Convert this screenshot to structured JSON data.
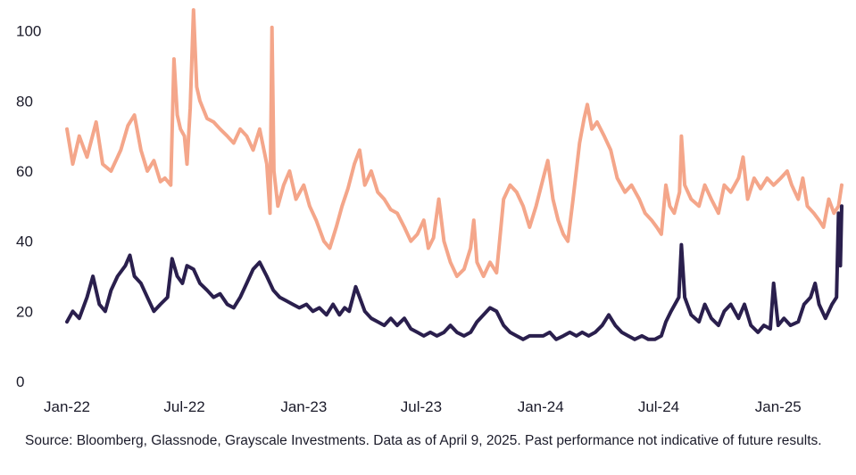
{
  "chart_data": {
    "type": "line",
    "title": "",
    "xlabel": "",
    "ylabel": "",
    "ylim": [
      0,
      105
    ],
    "yticks": [
      0,
      20,
      40,
      60,
      80,
      100
    ],
    "grid": false,
    "legend": "none",
    "xticks": [
      {
        "label": "Jan-22",
        "date": "2022-01-01"
      },
      {
        "label": "Jul-22",
        "date": "2022-07-01"
      },
      {
        "label": "Jan-23",
        "date": "2023-01-01"
      },
      {
        "label": "Jul-23",
        "date": "2023-07-01"
      },
      {
        "label": "Jan-24",
        "date": "2024-01-01"
      },
      {
        "label": "Jul-24",
        "date": "2024-07-01"
      },
      {
        "label": "Jan-25",
        "date": "2025-01-01"
      }
    ],
    "x_range": [
      "2022-01-01",
      "2025-04-09"
    ],
    "series": [
      {
        "color": "#f4a68a",
        "points": [
          [
            "2022-01-01",
            72
          ],
          [
            "2022-01-10",
            62
          ],
          [
            "2022-01-20",
            70
          ],
          [
            "2022-02-01",
            64
          ],
          [
            "2022-02-15",
            74
          ],
          [
            "2022-02-25",
            62
          ],
          [
            "2022-03-10",
            60
          ],
          [
            "2022-03-25",
            66
          ],
          [
            "2022-04-05",
            73
          ],
          [
            "2022-04-15",
            76
          ],
          [
            "2022-04-25",
            66
          ],
          [
            "2022-05-05",
            60
          ],
          [
            "2022-05-15",
            63
          ],
          [
            "2022-05-25",
            57
          ],
          [
            "2022-06-01",
            58
          ],
          [
            "2022-06-10",
            56
          ],
          [
            "2022-06-15",
            92
          ],
          [
            "2022-06-20",
            76
          ],
          [
            "2022-06-25",
            72
          ],
          [
            "2022-07-01",
            70
          ],
          [
            "2022-07-05",
            62
          ],
          [
            "2022-07-10",
            78
          ],
          [
            "2022-07-15",
            106
          ],
          [
            "2022-07-20",
            84
          ],
          [
            "2022-07-25",
            80
          ],
          [
            "2022-08-05",
            75
          ],
          [
            "2022-08-15",
            74
          ],
          [
            "2022-08-25",
            72
          ],
          [
            "2022-09-05",
            70
          ],
          [
            "2022-09-15",
            68
          ],
          [
            "2022-09-25",
            72
          ],
          [
            "2022-10-05",
            70
          ],
          [
            "2022-10-15",
            66
          ],
          [
            "2022-10-25",
            72
          ],
          [
            "2022-11-05",
            62
          ],
          [
            "2022-11-10",
            48
          ],
          [
            "2022-11-13",
            101
          ],
          [
            "2022-11-16",
            60
          ],
          [
            "2022-11-22",
            50
          ],
          [
            "2022-12-01",
            56
          ],
          [
            "2022-12-10",
            60
          ],
          [
            "2022-12-20",
            52
          ],
          [
            "2023-01-01",
            56
          ],
          [
            "2023-01-10",
            50
          ],
          [
            "2023-01-20",
            46
          ],
          [
            "2023-02-01",
            40
          ],
          [
            "2023-02-10",
            38
          ],
          [
            "2023-02-20",
            44
          ],
          [
            "2023-03-01",
            50
          ],
          [
            "2023-03-10",
            55
          ],
          [
            "2023-03-20",
            62
          ],
          [
            "2023-03-28",
            66
          ],
          [
            "2023-04-05",
            56
          ],
          [
            "2023-04-15",
            60
          ],
          [
            "2023-04-25",
            54
          ],
          [
            "2023-05-05",
            52
          ],
          [
            "2023-05-15",
            49
          ],
          [
            "2023-05-25",
            48
          ],
          [
            "2023-06-05",
            44
          ],
          [
            "2023-06-15",
            40
          ],
          [
            "2023-06-25",
            42
          ],
          [
            "2023-07-05",
            46
          ],
          [
            "2023-07-12",
            38
          ],
          [
            "2023-07-20",
            41
          ],
          [
            "2023-07-28",
            52
          ],
          [
            "2023-08-05",
            40
          ],
          [
            "2023-08-15",
            34
          ],
          [
            "2023-08-25",
            30
          ],
          [
            "2023-09-05",
            32
          ],
          [
            "2023-09-15",
            38
          ],
          [
            "2023-09-20",
            46
          ],
          [
            "2023-09-25",
            34
          ],
          [
            "2023-10-05",
            30
          ],
          [
            "2023-10-15",
            34
          ],
          [
            "2023-10-25",
            31
          ],
          [
            "2023-11-05",
            52
          ],
          [
            "2023-11-15",
            56
          ],
          [
            "2023-11-25",
            54
          ],
          [
            "2023-12-05",
            50
          ],
          [
            "2023-12-15",
            44
          ],
          [
            "2023-12-25",
            50
          ],
          [
            "2024-01-05",
            58
          ],
          [
            "2024-01-12",
            63
          ],
          [
            "2024-01-20",
            52
          ],
          [
            "2024-01-28",
            46
          ],
          [
            "2024-02-05",
            42
          ],
          [
            "2024-02-12",
            40
          ],
          [
            "2024-02-20",
            52
          ],
          [
            "2024-03-01",
            68
          ],
          [
            "2024-03-08",
            75
          ],
          [
            "2024-03-13",
            79
          ],
          [
            "2024-03-20",
            72
          ],
          [
            "2024-03-28",
            74
          ],
          [
            "2024-04-08",
            70
          ],
          [
            "2024-04-18",
            66
          ],
          [
            "2024-04-28",
            58
          ],
          [
            "2024-05-10",
            54
          ],
          [
            "2024-05-20",
            56
          ],
          [
            "2024-06-01",
            52
          ],
          [
            "2024-06-10",
            48
          ],
          [
            "2024-06-20",
            46
          ],
          [
            "2024-06-28",
            44
          ],
          [
            "2024-07-05",
            42
          ],
          [
            "2024-07-12",
            56
          ],
          [
            "2024-07-18",
            50
          ],
          [
            "2024-07-25",
            48
          ],
          [
            "2024-08-02",
            54
          ],
          [
            "2024-08-05",
            70
          ],
          [
            "2024-08-10",
            56
          ],
          [
            "2024-08-20",
            52
          ],
          [
            "2024-09-01",
            50
          ],
          [
            "2024-09-10",
            56
          ],
          [
            "2024-09-20",
            52
          ],
          [
            "2024-10-01",
            48
          ],
          [
            "2024-10-10",
            56
          ],
          [
            "2024-10-20",
            54
          ],
          [
            "2024-11-01",
            58
          ],
          [
            "2024-11-08",
            64
          ],
          [
            "2024-11-15",
            52
          ],
          [
            "2024-11-25",
            58
          ],
          [
            "2024-12-05",
            55
          ],
          [
            "2024-12-15",
            58
          ],
          [
            "2024-12-25",
            56
          ],
          [
            "2025-01-05",
            58
          ],
          [
            "2025-01-15",
            60
          ],
          [
            "2025-01-22",
            56
          ],
          [
            "2025-02-01",
            52
          ],
          [
            "2025-02-08",
            58
          ],
          [
            "2025-02-15",
            50
          ],
          [
            "2025-02-25",
            48
          ],
          [
            "2025-03-05",
            46
          ],
          [
            "2025-03-12",
            44
          ],
          [
            "2025-03-20",
            52
          ],
          [
            "2025-03-28",
            48
          ],
          [
            "2025-04-04",
            50
          ],
          [
            "2025-04-09",
            56
          ]
        ]
      },
      {
        "color": "#2a1f4d",
        "points": [
          [
            "2022-01-01",
            17
          ],
          [
            "2022-01-10",
            20
          ],
          [
            "2022-01-20",
            18
          ],
          [
            "2022-02-01",
            24
          ],
          [
            "2022-02-10",
            30
          ],
          [
            "2022-02-20",
            22
          ],
          [
            "2022-03-01",
            20
          ],
          [
            "2022-03-10",
            26
          ],
          [
            "2022-03-20",
            30
          ],
          [
            "2022-04-01",
            33
          ],
          [
            "2022-04-08",
            36
          ],
          [
            "2022-04-15",
            30
          ],
          [
            "2022-04-25",
            28
          ],
          [
            "2022-05-05",
            24
          ],
          [
            "2022-05-15",
            20
          ],
          [
            "2022-05-25",
            22
          ],
          [
            "2022-06-05",
            24
          ],
          [
            "2022-06-12",
            35
          ],
          [
            "2022-06-20",
            30
          ],
          [
            "2022-06-28",
            28
          ],
          [
            "2022-07-05",
            33
          ],
          [
            "2022-07-15",
            32
          ],
          [
            "2022-07-25",
            28
          ],
          [
            "2022-08-05",
            26
          ],
          [
            "2022-08-15",
            24
          ],
          [
            "2022-08-25",
            25
          ],
          [
            "2022-09-05",
            22
          ],
          [
            "2022-09-15",
            21
          ],
          [
            "2022-09-25",
            24
          ],
          [
            "2022-10-05",
            28
          ],
          [
            "2022-10-15",
            32
          ],
          [
            "2022-10-25",
            34
          ],
          [
            "2022-11-05",
            30
          ],
          [
            "2022-11-15",
            26
          ],
          [
            "2022-11-25",
            24
          ],
          [
            "2022-12-05",
            23
          ],
          [
            "2022-12-15",
            22
          ],
          [
            "2022-12-25",
            21
          ],
          [
            "2023-01-05",
            22
          ],
          [
            "2023-01-15",
            20
          ],
          [
            "2023-01-25",
            21
          ],
          [
            "2023-02-05",
            19
          ],
          [
            "2023-02-15",
            22
          ],
          [
            "2023-02-25",
            19
          ],
          [
            "2023-03-05",
            21
          ],
          [
            "2023-03-12",
            20
          ],
          [
            "2023-03-22",
            27
          ],
          [
            "2023-03-28",
            24
          ],
          [
            "2023-04-05",
            20
          ],
          [
            "2023-04-15",
            18
          ],
          [
            "2023-04-25",
            17
          ],
          [
            "2023-05-05",
            16
          ],
          [
            "2023-05-15",
            18
          ],
          [
            "2023-05-25",
            16
          ],
          [
            "2023-06-05",
            18
          ],
          [
            "2023-06-15",
            15
          ],
          [
            "2023-06-25",
            14
          ],
          [
            "2023-07-05",
            13
          ],
          [
            "2023-07-15",
            14
          ],
          [
            "2023-07-25",
            13
          ],
          [
            "2023-08-05",
            14
          ],
          [
            "2023-08-15",
            16
          ],
          [
            "2023-08-25",
            14
          ],
          [
            "2023-09-05",
            13
          ],
          [
            "2023-09-15",
            14
          ],
          [
            "2023-09-25",
            17
          ],
          [
            "2023-10-05",
            19
          ],
          [
            "2023-10-15",
            21
          ],
          [
            "2023-10-25",
            20
          ],
          [
            "2023-11-05",
            16
          ],
          [
            "2023-11-15",
            14
          ],
          [
            "2023-11-25",
            13
          ],
          [
            "2023-12-05",
            12
          ],
          [
            "2023-12-15",
            13
          ],
          [
            "2024-01-05",
            13
          ],
          [
            "2024-01-15",
            14
          ],
          [
            "2024-01-25",
            12
          ],
          [
            "2024-02-05",
            13
          ],
          [
            "2024-02-15",
            14
          ],
          [
            "2024-02-25",
            13
          ],
          [
            "2024-03-05",
            14
          ],
          [
            "2024-03-15",
            13
          ],
          [
            "2024-03-25",
            14
          ],
          [
            "2024-04-05",
            16
          ],
          [
            "2024-04-15",
            19
          ],
          [
            "2024-04-25",
            16
          ],
          [
            "2024-05-05",
            14
          ],
          [
            "2024-05-15",
            13
          ],
          [
            "2024-05-25",
            12
          ],
          [
            "2024-06-05",
            13
          ],
          [
            "2024-06-15",
            12
          ],
          [
            "2024-06-25",
            12
          ],
          [
            "2024-07-05",
            13
          ],
          [
            "2024-07-12",
            17
          ],
          [
            "2024-07-20",
            20
          ],
          [
            "2024-08-01",
            24
          ],
          [
            "2024-08-05",
            39
          ],
          [
            "2024-08-10",
            24
          ],
          [
            "2024-08-20",
            19
          ],
          [
            "2024-09-01",
            17
          ],
          [
            "2024-09-10",
            22
          ],
          [
            "2024-09-20",
            18
          ],
          [
            "2024-10-01",
            16
          ],
          [
            "2024-10-10",
            20
          ],
          [
            "2024-10-20",
            22
          ],
          [
            "2024-11-01",
            18
          ],
          [
            "2024-11-10",
            22
          ],
          [
            "2024-11-20",
            16
          ],
          [
            "2024-12-01",
            14
          ],
          [
            "2024-12-10",
            16
          ],
          [
            "2024-12-20",
            15
          ],
          [
            "2024-12-25",
            28
          ],
          [
            "2025-01-01",
            16
          ],
          [
            "2025-01-10",
            18
          ],
          [
            "2025-01-20",
            16
          ],
          [
            "2025-02-01",
            17
          ],
          [
            "2025-02-10",
            22
          ],
          [
            "2025-02-20",
            24
          ],
          [
            "2025-02-27",
            28
          ],
          [
            "2025-03-05",
            22
          ],
          [
            "2025-03-15",
            18
          ],
          [
            "2025-03-25",
            22
          ],
          [
            "2025-04-01",
            24
          ],
          [
            "2025-04-04",
            48
          ],
          [
            "2025-04-07",
            33
          ],
          [
            "2025-04-09",
            50
          ]
        ]
      }
    ]
  },
  "footnote": "Source: Bloomberg, Glassnode, Grayscale Investments. Data as of April 9, 2025. Past performance not indicative of future results."
}
